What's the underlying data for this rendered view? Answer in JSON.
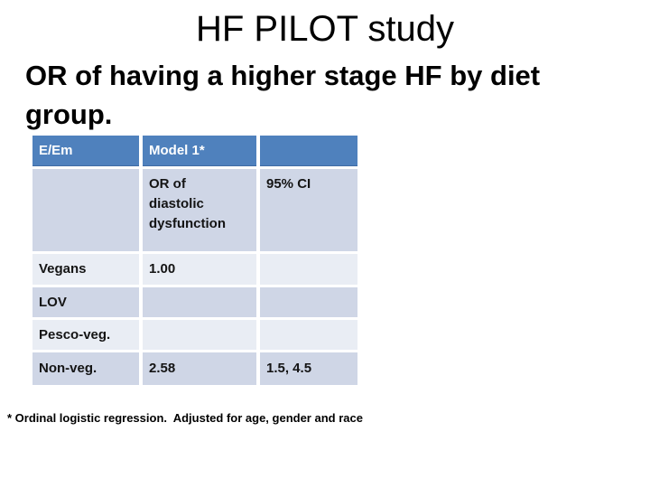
{
  "slide": {
    "title": "HF PILOT study",
    "subtitle": "OR of having a higher stage HF by diet\ngroup.",
    "footnote": "* Ordinal logistic regression.  Adjusted for age, gender and race"
  },
  "table": {
    "header": [
      "E/Em",
      "Model 1*",
      ""
    ],
    "subheader": [
      "",
      "OR of\ndiastolic\ndysfunction",
      "95% CI"
    ],
    "rows": [
      {
        "group": "Vegans",
        "or": "1.00",
        "ci": ""
      },
      {
        "group": "LOV",
        "or": "",
        "ci": ""
      },
      {
        "group": "Pesco-veg.",
        "or": "",
        "ci": ""
      },
      {
        "group": "Non-veg.",
        "or": "2.58",
        "ci": "1.5, 4.5"
      }
    ]
  },
  "colors": {
    "header_bg": "#4F81BD",
    "header_text": "#FFFFFF",
    "band_dark": "#CFD6E6",
    "band_light": "#E9EDF4",
    "body_text": "#141414"
  }
}
